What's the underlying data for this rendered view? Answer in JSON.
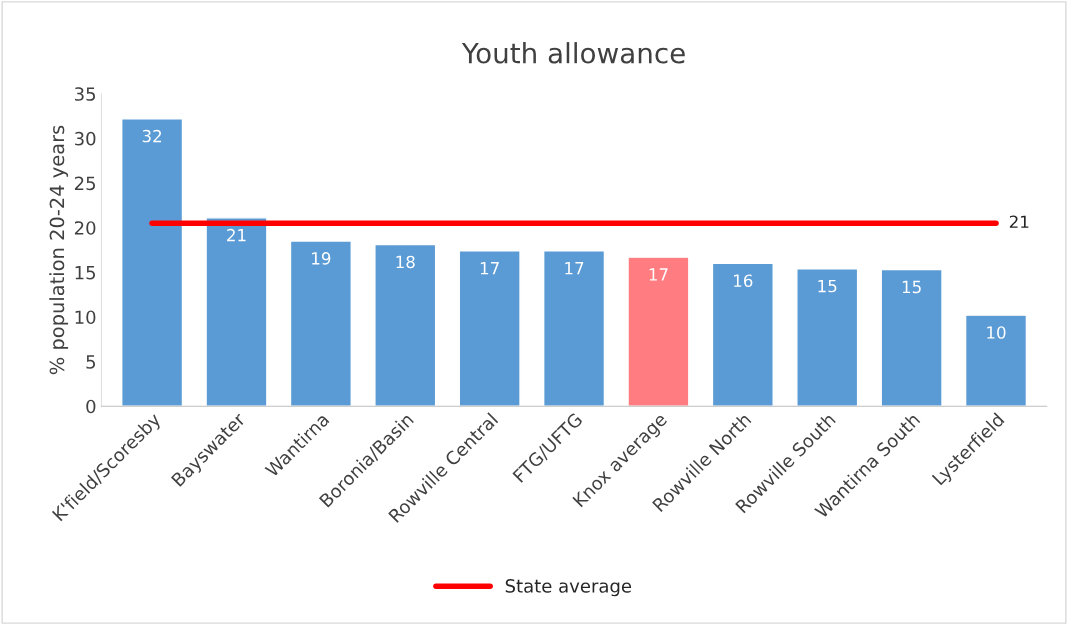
{
  "chart_data": {
    "type": "bar",
    "title": "Youth allowance",
    "ylabel": "% population 20-24 years",
    "categories": [
      "K'field/Scoresby",
      "Bayswater",
      "Wantirna",
      "Boronia/Basin",
      "Rowville Central",
      "FTG/UFTG",
      "Knox average",
      "Rowville North",
      "Rowville South",
      "Wantirna South",
      "Lysterfield"
    ],
    "series": [
      {
        "values": [
          32.2,
          21.1,
          18.5,
          18.1,
          17.4,
          17.4,
          16.7,
          16.0,
          15.4,
          15.3,
          10.2
        ],
        "colors": [
          "#5b9bd5",
          "#5b9bd5",
          "#5b9bd5",
          "#5b9bd5",
          "#5b9bd5",
          "#5b9bd5",
          "#ff7c80",
          "#5b9bd5",
          "#5b9bd5",
          "#5b9bd5",
          "#5b9bd5"
        ],
        "value_labels": [
          "32",
          "21",
          "19",
          "18",
          "17",
          "17",
          "17",
          "16",
          "15",
          "15",
          "10"
        ]
      },
      {
        "type": "line",
        "name": "State average",
        "color": "#ff0000",
        "values": [
          20.5,
          20.5,
          20.5,
          20.5,
          20.5,
          20.5,
          20.5,
          20.5,
          20.5,
          20.5,
          20.5
        ],
        "value_labels": [
          null,
          null,
          null,
          null,
          null,
          null,
          null,
          null,
          null,
          null,
          "21"
        ]
      }
    ],
    "ylim": [
      0,
      35
    ],
    "yticks": [
      0,
      5,
      10,
      15,
      20,
      25,
      30,
      35
    ],
    "grid": false,
    "legend": "bottom"
  }
}
